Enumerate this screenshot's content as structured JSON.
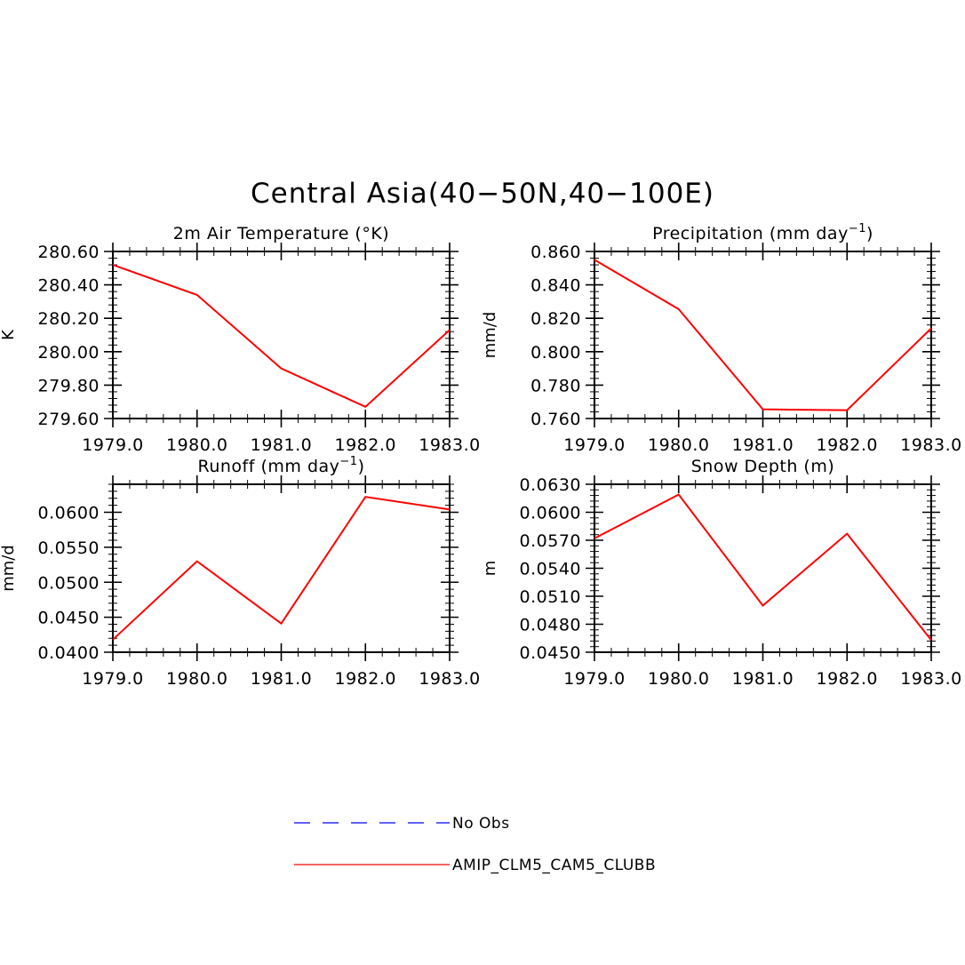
{
  "figure": {
    "title": "Central Asia(40−50N,40−100E)"
  },
  "chart_data": [
    {
      "type": "line",
      "title": "2m Air Temperature (°K)",
      "title_sup": "",
      "title_tail": "",
      "xlabel": "",
      "ylabel": "K",
      "x": [
        1979,
        1980,
        1981,
        1982,
        1983
      ],
      "xlim": [
        1979,
        1983
      ],
      "x_tick_labels": [
        "1979.0",
        "1980.0",
        "1981.0",
        "1982.0",
        "1983.0"
      ],
      "ylim": [
        279.6,
        280.6
      ],
      "y_ticks": [
        279.6,
        279.8,
        280.0,
        280.2,
        280.4,
        280.6
      ],
      "y_tick_labels": [
        "279.60",
        "279.80",
        "280.00",
        "280.20",
        "280.40",
        "280.60"
      ],
      "grid": false,
      "series": [
        {
          "name": "AMIP_CLM5_CAM5_CLUBB",
          "color": "#ff0000",
          "values": [
            280.52,
            280.34,
            279.9,
            279.67,
            280.13
          ]
        }
      ]
    },
    {
      "type": "line",
      "title": "Precipitation (mm day",
      "title_sup": "−1",
      "title_tail": ")",
      "xlabel": "",
      "ylabel": "mm/d",
      "x": [
        1979,
        1980,
        1981,
        1982,
        1983
      ],
      "xlim": [
        1979,
        1983
      ],
      "x_tick_labels": [
        "1979.0",
        "1980.0",
        "1981.0",
        "1982.0",
        "1983.0"
      ],
      "ylim": [
        0.76,
        0.86
      ],
      "y_ticks": [
        0.76,
        0.78,
        0.8,
        0.82,
        0.84,
        0.86
      ],
      "y_tick_labels": [
        "0.760",
        "0.780",
        "0.800",
        "0.820",
        "0.840",
        "0.860"
      ],
      "grid": false,
      "series": [
        {
          "name": "AMIP_CLM5_CAM5_CLUBB",
          "color": "#ff0000",
          "values": [
            0.855,
            0.8255,
            0.7655,
            0.765,
            0.814
          ]
        }
      ]
    },
    {
      "type": "line",
      "title": "Runoff (mm day",
      "title_sup": "−1",
      "title_tail": ")",
      "xlabel": "",
      "ylabel": "mm/d",
      "x": [
        1979,
        1980,
        1981,
        1982,
        1983
      ],
      "xlim": [
        1979,
        1983
      ],
      "x_tick_labels": [
        "1979.0",
        "1980.0",
        "1981.0",
        "1982.0",
        "1983.0"
      ],
      "ylim": [
        0.04,
        0.064
      ],
      "y_ticks": [
        0.04,
        0.045,
        0.05,
        0.055,
        0.06
      ],
      "y_tick_labels": [
        "0.0400",
        "0.0450",
        "0.0500",
        "0.0550",
        "0.0600"
      ],
      "grid": false,
      "series": [
        {
          "name": "AMIP_CLM5_CAM5_CLUBB",
          "color": "#ff0000",
          "values": [
            0.0418,
            0.053,
            0.0441,
            0.0622,
            0.0604
          ]
        }
      ]
    },
    {
      "type": "line",
      "title": "Snow Depth (m)",
      "title_sup": "",
      "title_tail": "",
      "xlabel": "",
      "ylabel": "m",
      "x": [
        1979,
        1980,
        1981,
        1982,
        1983
      ],
      "xlim": [
        1979,
        1983
      ],
      "x_tick_labels": [
        "1979.0",
        "1980.0",
        "1981.0",
        "1982.0",
        "1983.0"
      ],
      "ylim": [
        0.045,
        0.063
      ],
      "y_ticks": [
        0.045,
        0.048,
        0.051,
        0.054,
        0.057,
        0.06,
        0.063
      ],
      "y_tick_labels": [
        "0.0450",
        "0.0480",
        "0.0510",
        "0.0540",
        "0.0570",
        "0.0600",
        "0.0630"
      ],
      "grid": false,
      "series": [
        {
          "name": "AMIP_CLM5_CAM5_CLUBB",
          "color": "#ff0000",
          "values": [
            0.0572,
            0.0619,
            0.05,
            0.0577,
            0.0463
          ]
        }
      ]
    }
  ],
  "legend": {
    "entries": [
      {
        "label": "No Obs",
        "color": "#0000ff",
        "style": "dashed"
      },
      {
        "label": "AMIP_CLM5_CAM5_CLUBB",
        "color": "#ff0000",
        "style": "solid"
      }
    ]
  }
}
